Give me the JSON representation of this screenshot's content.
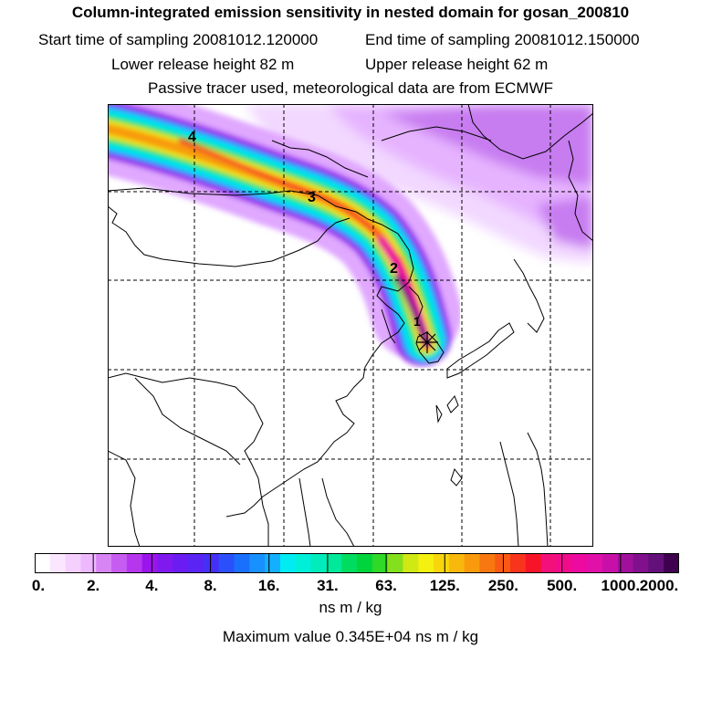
{
  "header": {
    "title": "Column-integrated emission sensitivity in nested domain for gosan_200810",
    "start_time": "Start time of sampling 20081012.120000",
    "end_time": "End time of sampling 20081012.150000",
    "lower_release": "Lower release height   82 m",
    "upper_release": "Upper release height   62 m",
    "tracer_note": "Passive tracer used, meteorological data are from ECMWF"
  },
  "map": {
    "day_markers": [
      "4",
      "3",
      "2",
      "1"
    ],
    "receptor_symbol": "✳"
  },
  "colorbar": {
    "colors": [
      "#ffffff",
      "#fbe6ff",
      "#f5d0ff",
      "#eeb8ff",
      "#d884f5",
      "#c65cf0",
      "#b636ee",
      "#9b14ec",
      "#7f1aef",
      "#6a1cf2",
      "#5a24f5",
      "#4630f8",
      "#2b50fb",
      "#1870fd",
      "#1890ff",
      "#14b0ff",
      "#00ecf2",
      "#00efd8",
      "#00ecbd",
      "#00e89a",
      "#00dc60",
      "#00d43c",
      "#30d828",
      "#84e01c",
      "#d0e814",
      "#f4f010",
      "#f8d50c",
      "#f8b80c",
      "#f89a0c",
      "#f87810",
      "#f85a14",
      "#f8341c",
      "#f81428",
      "#f4107a",
      "#f00c8c",
      "#ec0aa0",
      "#e010a8",
      "#c810a8",
      "#a0109a",
      "#80108c",
      "#64107a",
      "#400050"
    ],
    "tick_labels": [
      "0.",
      "2.",
      "4.",
      "8.",
      "16.",
      "31.",
      "63.",
      "125.",
      "250.",
      "500.",
      "1000.",
      "2000."
    ],
    "units": "ns m / kg",
    "max_value": "Maximum value  0.345E+04 ns m / kg"
  }
}
